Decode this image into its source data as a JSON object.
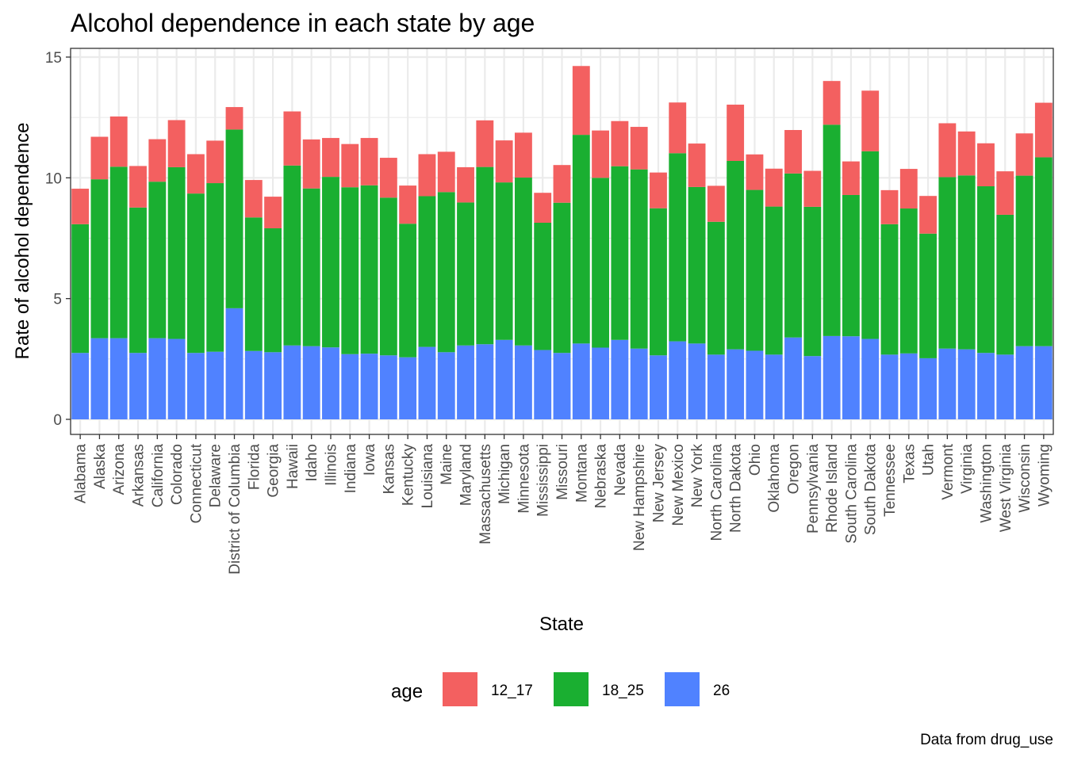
{
  "chart_data": {
    "type": "bar",
    "stacked": true,
    "title": "Alcohol dependence in each state by age",
    "xlabel": "State",
    "ylabel": "Rate of alcohol dependence",
    "caption": "Data from drug_use",
    "ylim": [
      0,
      15.2
    ],
    "yticks": [
      0,
      5,
      10,
      15
    ],
    "grid": true,
    "legend": {
      "title": "age",
      "position": "bottom"
    },
    "categories": [
      "Alabama",
      "Alaska",
      "Arizona",
      "Arkansas",
      "California",
      "Colorado",
      "Connecticut",
      "Delaware",
      "District of Columbia",
      "Florida",
      "Georgia",
      "Hawaii",
      "Idaho",
      "Illinois",
      "Indiana",
      "Iowa",
      "Kansas",
      "Kentucky",
      "Louisiana",
      "Maine",
      "Maryland",
      "Massachusetts",
      "Michigan",
      "Minnesota",
      "Mississippi",
      "Missouri",
      "Montana",
      "Nebraska",
      "Nevada",
      "New Hampshire",
      "New Jersey",
      "New Mexico",
      "New York",
      "North Carolina",
      "North Dakota",
      "Ohio",
      "Oklahoma",
      "Oregon",
      "Pennsylvania",
      "Rhode Island",
      "South Carolina",
      "South Dakota",
      "Tennessee",
      "Texas",
      "Utah",
      "Vermont",
      "Virginia",
      "Washington",
      "West Virginia",
      "Wisconsin",
      "Wyoming"
    ],
    "series": [
      {
        "name": "26",
        "color": "#5082ff",
        "values": [
          2.75,
          3.36,
          3.36,
          2.75,
          3.36,
          3.33,
          2.75,
          2.8,
          4.6,
          2.83,
          2.78,
          3.06,
          3.03,
          2.98,
          2.7,
          2.72,
          2.65,
          2.57,
          3.0,
          2.78,
          3.06,
          3.11,
          3.29,
          3.06,
          2.87,
          2.75,
          3.14,
          2.97,
          3.29,
          2.93,
          2.65,
          3.23,
          3.14,
          2.68,
          2.9,
          2.84,
          2.68,
          3.39,
          2.62,
          3.45,
          3.44,
          3.33,
          2.68,
          2.73,
          2.53,
          2.93,
          2.9,
          2.75,
          2.68,
          3.03,
          3.03
        ]
      },
      {
        "name": "18_25",
        "color": "#1aaf31",
        "values": [
          5.33,
          6.58,
          7.1,
          6.02,
          6.48,
          7.11,
          6.6,
          6.98,
          7.4,
          5.53,
          5.13,
          7.45,
          6.53,
          7.06,
          6.91,
          6.97,
          6.53,
          5.53,
          6.24,
          6.63,
          5.92,
          7.34,
          6.52,
          6.95,
          5.27,
          6.22,
          8.64,
          7.03,
          7.19,
          7.42,
          6.09,
          7.79,
          6.48,
          5.5,
          7.8,
          6.66,
          6.13,
          6.79,
          6.18,
          8.75,
          5.85,
          7.77,
          5.4,
          6.0,
          5.16,
          7.1,
          7.2,
          6.9,
          5.79,
          7.06,
          7.82
        ]
      },
      {
        "name": "12_17",
        "color": "#f36060",
        "values": [
          1.47,
          1.76,
          2.08,
          1.72,
          1.76,
          1.95,
          1.63,
          1.76,
          0.93,
          1.55,
          1.31,
          2.24,
          2.03,
          1.61,
          1.79,
          1.96,
          1.65,
          1.58,
          1.74,
          1.67,
          1.46,
          1.93,
          1.74,
          1.86,
          1.24,
          1.56,
          2.85,
          1.96,
          1.87,
          1.76,
          1.48,
          2.1,
          1.8,
          1.49,
          2.33,
          1.47,
          1.57,
          1.8,
          1.49,
          1.81,
          1.39,
          2.51,
          1.41,
          1.64,
          1.56,
          2.23,
          1.82,
          1.78,
          1.8,
          1.75,
          2.26
        ]
      }
    ]
  }
}
